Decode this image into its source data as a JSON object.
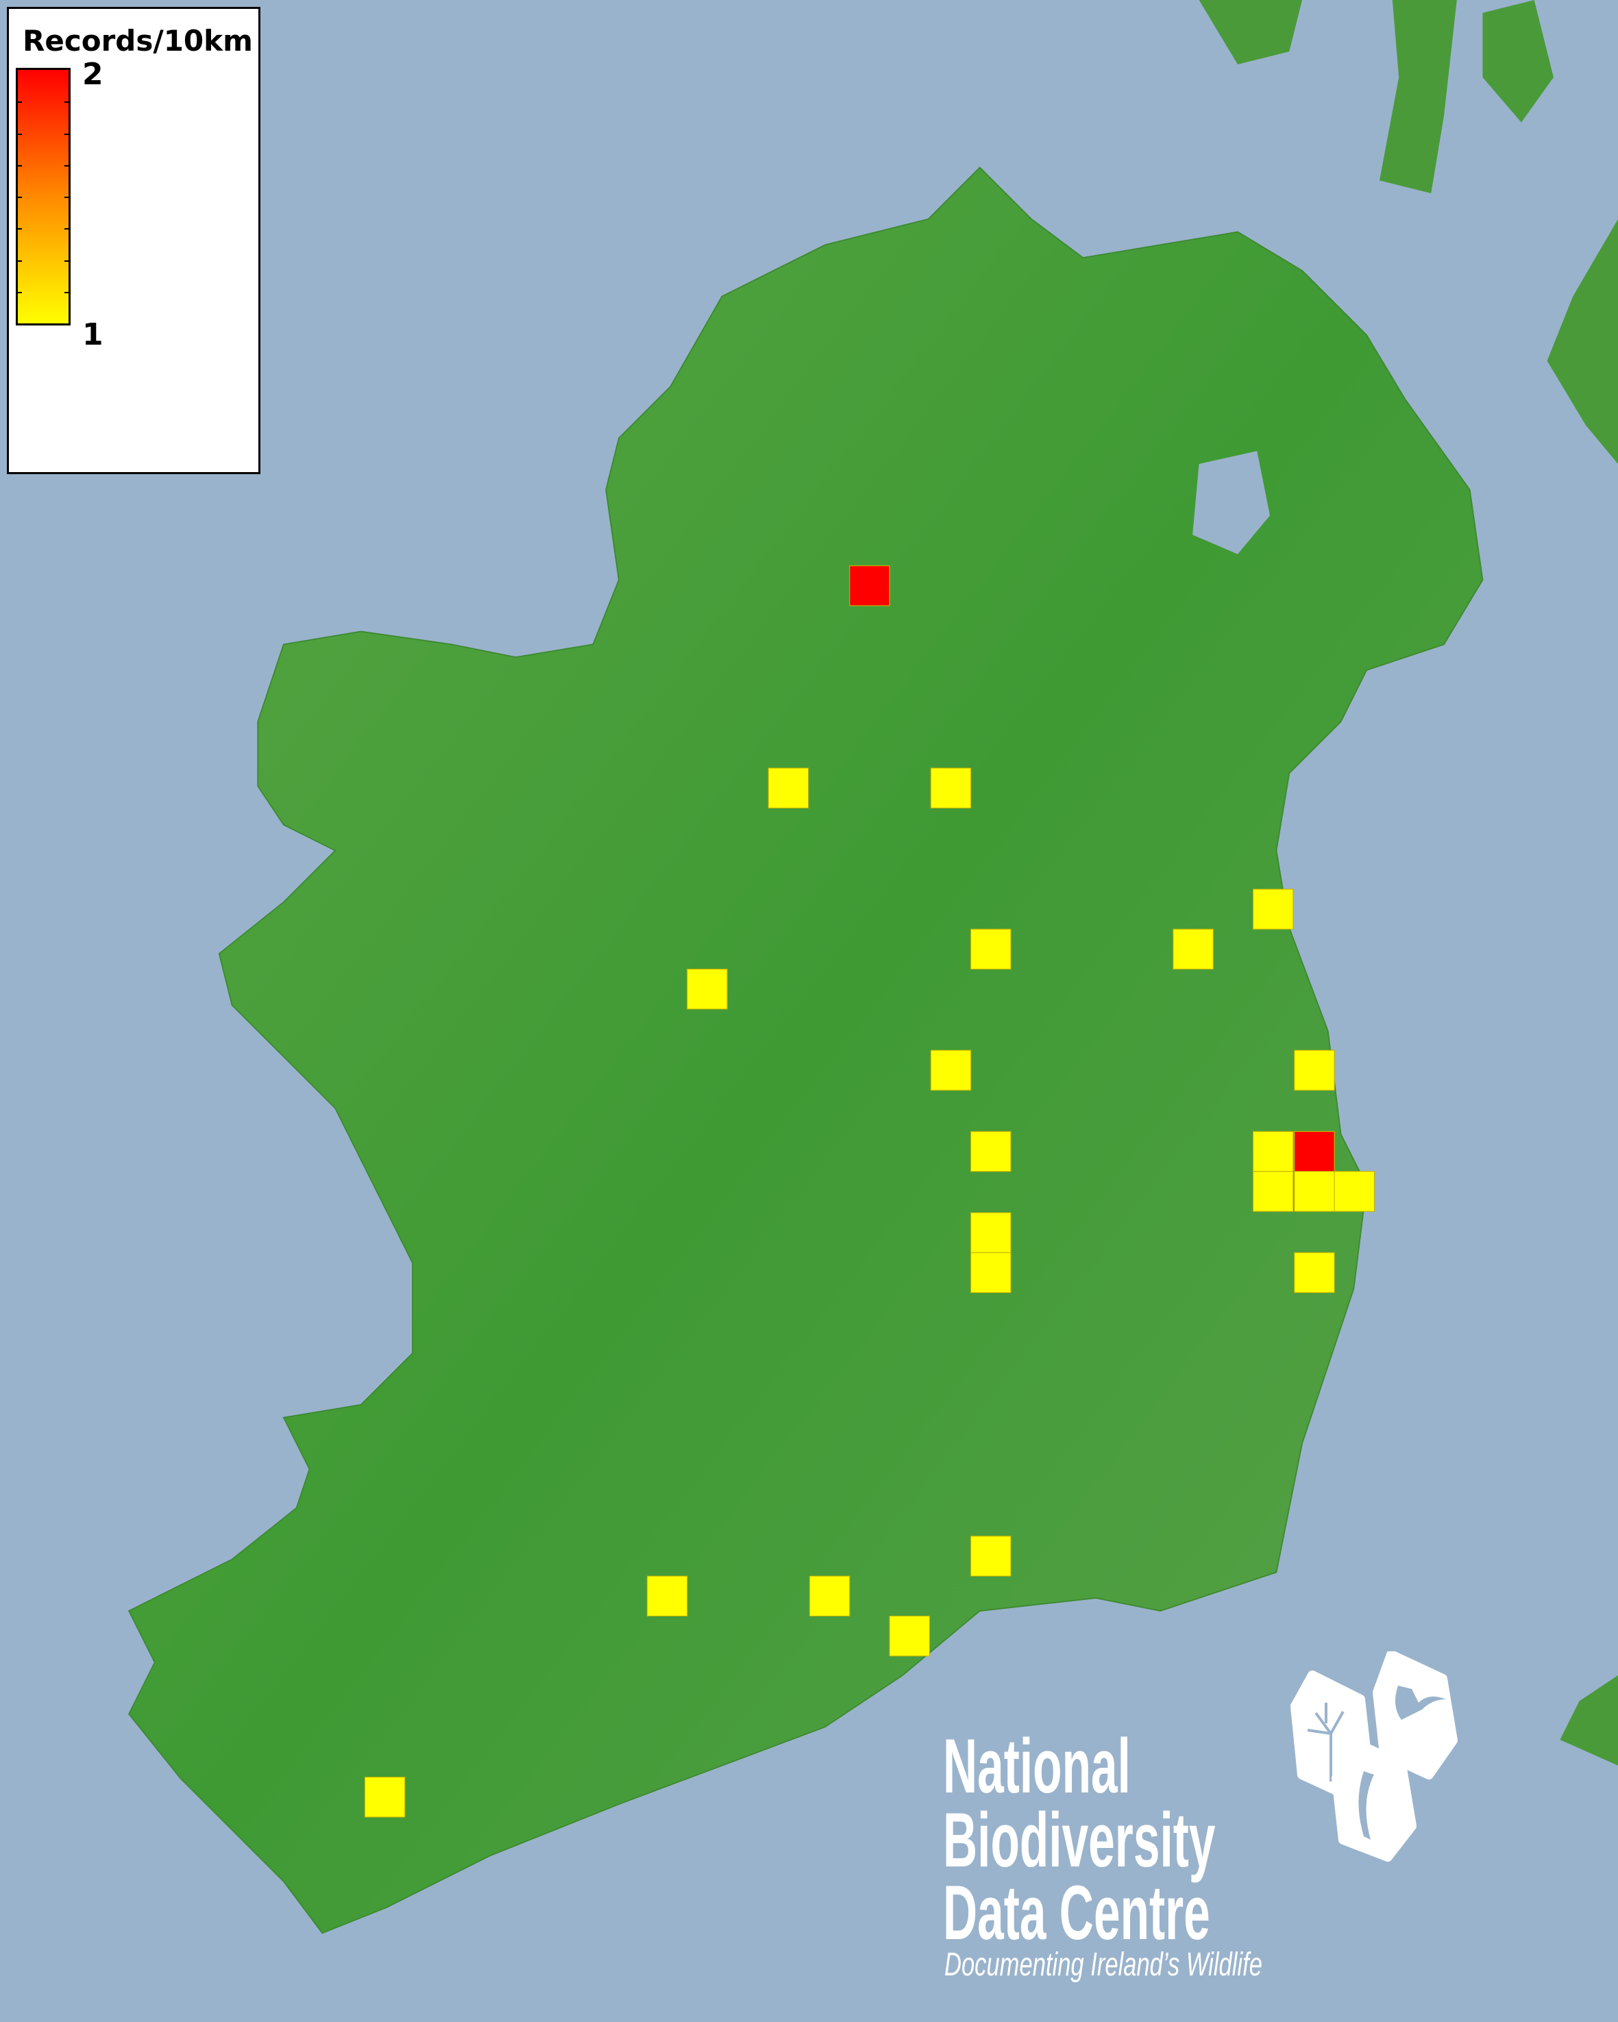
{
  "legend": {
    "title": "Records/10km",
    "max_label": "2",
    "min_label": "1",
    "color_max": "#ff0000",
    "color_min": "#ffff00"
  },
  "map": {
    "sea_color": "#9ab3cc",
    "land_color": "#4a9a3a",
    "squares": [
      {
        "records": 2
      },
      {
        "records": 2
      },
      {
        "records": 1
      },
      {
        "records": 1
      },
      {
        "records": 1
      },
      {
        "records": 1
      },
      {
        "records": 1
      },
      {
        "records": 1
      },
      {
        "records": 1
      },
      {
        "records": 1
      },
      {
        "records": 1
      },
      {
        "records": 1
      },
      {
        "records": 1
      },
      {
        "records": 1
      },
      {
        "records": 1
      },
      {
        "records": 1
      },
      {
        "records": 1
      },
      {
        "records": 1
      },
      {
        "records": 1
      },
      {
        "records": 1
      },
      {
        "records": 1
      },
      {
        "records": 1
      },
      {
        "records": 1
      }
    ]
  },
  "logo": {
    "line1": "National",
    "line2": "Biodiversity",
    "line3": "Data Centre",
    "tagline": "Documenting Ireland’s Wildlife",
    "icons": [
      "tree-icon",
      "butterfly-icon",
      "seahorse-icon"
    ]
  }
}
